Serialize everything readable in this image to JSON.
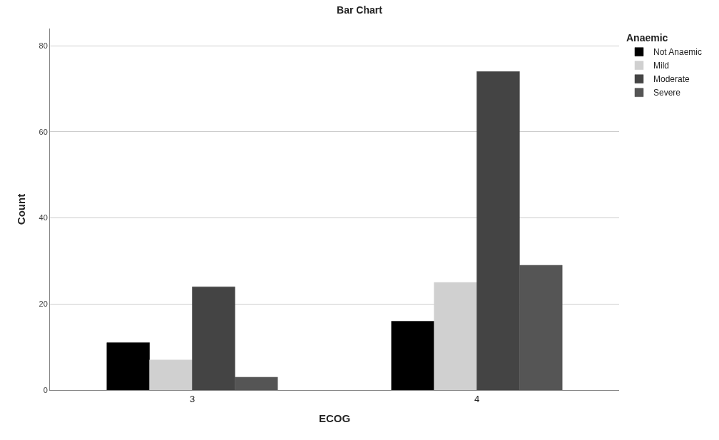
{
  "chart_data": {
    "type": "bar",
    "title": "Bar Chart",
    "xlabel": "ECOG",
    "ylabel": "Count",
    "legend_title": "Anaemic",
    "categories": [
      "3",
      "4"
    ],
    "series": [
      {
        "name": "Not Anaemic",
        "color": "#000000",
        "values": [
          11,
          16
        ]
      },
      {
        "name": "Mild",
        "color": "#d0d0d0",
        "values": [
          7,
          25
        ]
      },
      {
        "name": "Moderate",
        "color": "#444444",
        "values": [
          24,
          74
        ]
      },
      {
        "name": "Severe",
        "color": "#555555",
        "values": [
          3,
          29
        ]
      }
    ],
    "ylim": [
      0,
      84
    ],
    "yticks": [
      0,
      20,
      40,
      60,
      80
    ],
    "grid": "y",
    "legend": "top right"
  }
}
